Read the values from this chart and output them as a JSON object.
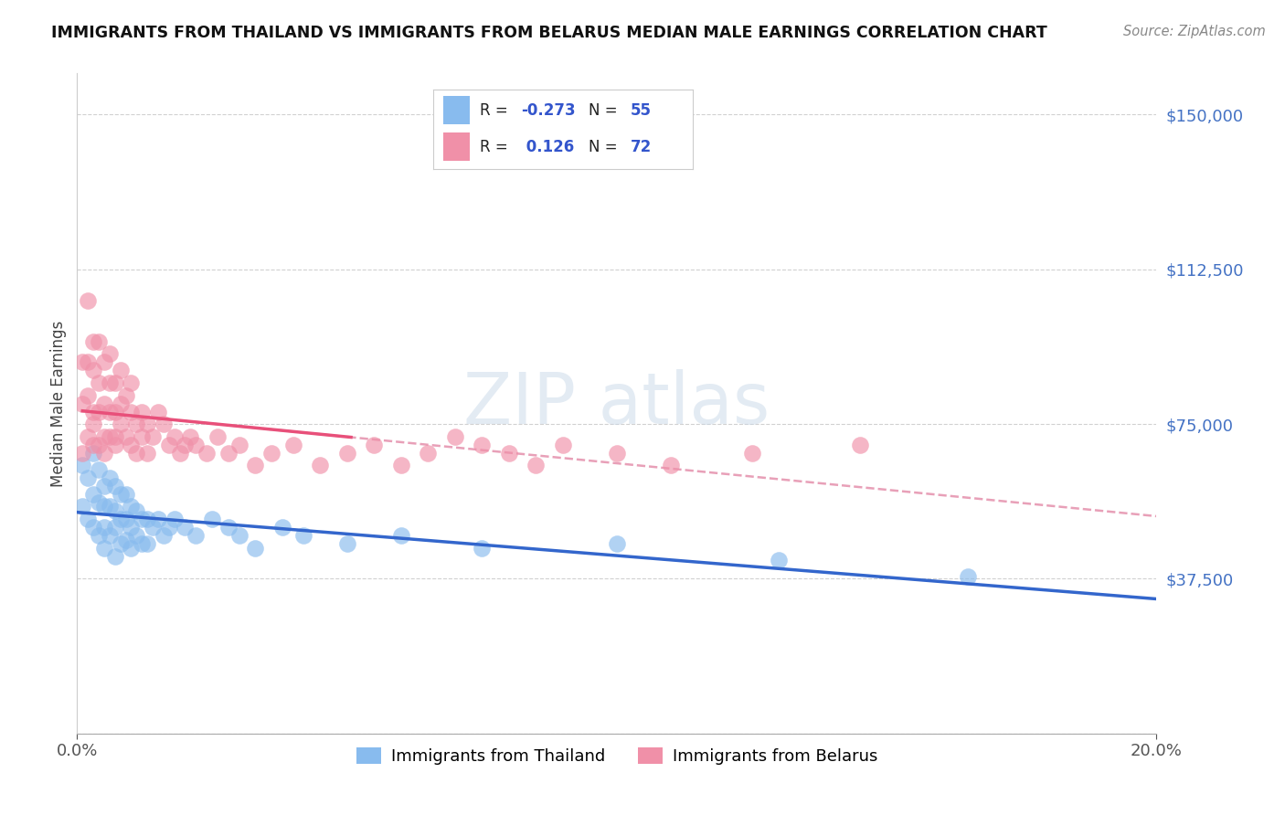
{
  "title": "IMMIGRANTS FROM THAILAND VS IMMIGRANTS FROM BELARUS MEDIAN MALE EARNINGS CORRELATION CHART",
  "source": "Source: ZipAtlas.com",
  "ylabel": "Median Male Earnings",
  "xlim": [
    0.0,
    0.2
  ],
  "ylim": [
    0,
    160000
  ],
  "yticks": [
    0,
    37500,
    75000,
    112500,
    150000
  ],
  "ytick_labels": [
    "",
    "$37,500",
    "$75,000",
    "$112,500",
    "$150,000"
  ],
  "series1_name": "Immigrants from Thailand",
  "series2_name": "Immigrants from Belarus",
  "series1_color": "#88bbee",
  "series2_color": "#f090a8",
  "series1_line_color": "#3366cc",
  "series2_line_color": "#e8507a",
  "series2_dash_color": "#e8a0b8",
  "watermark_color": "#c8d8e8",
  "background_color": "#ffffff",
  "grid_color": "#cccccc",
  "R1": -0.273,
  "N1": 55,
  "R2": 0.126,
  "N2": 72,
  "series1_x": [
    0.001,
    0.001,
    0.002,
    0.002,
    0.003,
    0.003,
    0.003,
    0.004,
    0.004,
    0.004,
    0.005,
    0.005,
    0.005,
    0.005,
    0.006,
    0.006,
    0.006,
    0.007,
    0.007,
    0.007,
    0.007,
    0.008,
    0.008,
    0.008,
    0.009,
    0.009,
    0.009,
    0.01,
    0.01,
    0.01,
    0.011,
    0.011,
    0.012,
    0.012,
    0.013,
    0.013,
    0.014,
    0.015,
    0.016,
    0.017,
    0.018,
    0.02,
    0.022,
    0.025,
    0.028,
    0.03,
    0.033,
    0.038,
    0.042,
    0.05,
    0.06,
    0.075,
    0.1,
    0.13,
    0.165
  ],
  "series1_y": [
    65000,
    55000,
    62000,
    52000,
    68000,
    58000,
    50000,
    64000,
    56000,
    48000,
    60000,
    55000,
    50000,
    45000,
    62000,
    55000,
    48000,
    60000,
    54000,
    50000,
    43000,
    58000,
    52000,
    46000,
    58000,
    52000,
    47000,
    55000,
    50000,
    45000,
    54000,
    48000,
    52000,
    46000,
    52000,
    46000,
    50000,
    52000,
    48000,
    50000,
    52000,
    50000,
    48000,
    52000,
    50000,
    48000,
    45000,
    50000,
    48000,
    46000,
    48000,
    45000,
    46000,
    42000,
    38000
  ],
  "series2_x": [
    0.001,
    0.001,
    0.001,
    0.002,
    0.002,
    0.002,
    0.002,
    0.003,
    0.003,
    0.003,
    0.003,
    0.003,
    0.004,
    0.004,
    0.004,
    0.004,
    0.005,
    0.005,
    0.005,
    0.005,
    0.006,
    0.006,
    0.006,
    0.006,
    0.007,
    0.007,
    0.007,
    0.007,
    0.008,
    0.008,
    0.008,
    0.009,
    0.009,
    0.01,
    0.01,
    0.01,
    0.011,
    0.011,
    0.012,
    0.012,
    0.013,
    0.013,
    0.014,
    0.015,
    0.016,
    0.017,
    0.018,
    0.019,
    0.02,
    0.021,
    0.022,
    0.024,
    0.026,
    0.028,
    0.03,
    0.033,
    0.036,
    0.04,
    0.045,
    0.05,
    0.055,
    0.06,
    0.065,
    0.07,
    0.075,
    0.08,
    0.085,
    0.09,
    0.1,
    0.11,
    0.125,
    0.145
  ],
  "series2_y": [
    68000,
    80000,
    90000,
    72000,
    82000,
    90000,
    105000,
    78000,
    88000,
    95000,
    75000,
    70000,
    85000,
    78000,
    95000,
    70000,
    80000,
    90000,
    72000,
    68000,
    85000,
    78000,
    72000,
    92000,
    78000,
    85000,
    70000,
    72000,
    80000,
    88000,
    75000,
    82000,
    72000,
    78000,
    85000,
    70000,
    75000,
    68000,
    78000,
    72000,
    75000,
    68000,
    72000,
    78000,
    75000,
    70000,
    72000,
    68000,
    70000,
    72000,
    70000,
    68000,
    72000,
    68000,
    70000,
    65000,
    68000,
    70000,
    65000,
    68000,
    70000,
    65000,
    68000,
    72000,
    70000,
    68000,
    65000,
    70000,
    68000,
    65000,
    68000,
    70000
  ]
}
